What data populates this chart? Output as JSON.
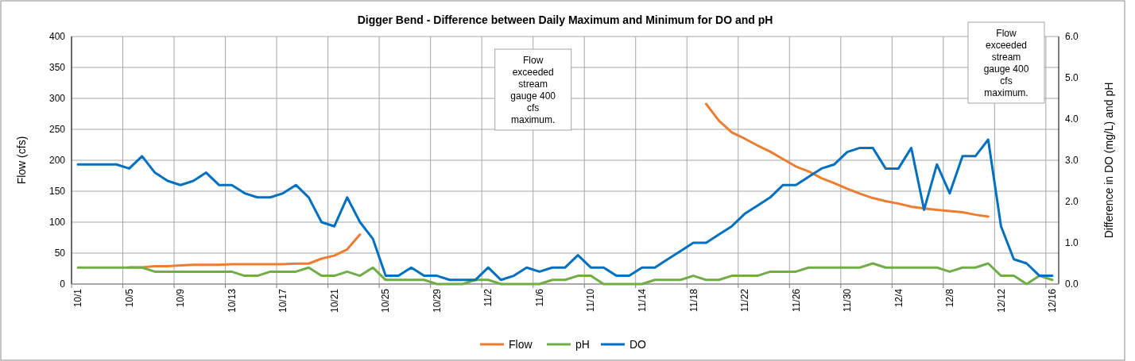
{
  "chart_data": {
    "type": "line",
    "title": "Digger Bend - Difference between Daily Maximum and Minimum for DO and pH",
    "ylabel": "Flow (cfs)",
    "y2label": "Difference in DO (mg/L) and pH",
    "categories": [
      "10/1",
      null,
      null,
      null,
      "10/5",
      null,
      null,
      null,
      "10/9",
      null,
      null,
      null,
      "10/13",
      null,
      null,
      null,
      "10/17",
      null,
      null,
      null,
      "10/21",
      null,
      null,
      null,
      "10/25",
      null,
      null,
      null,
      "10/29",
      null,
      null,
      null,
      "11/2",
      null,
      null,
      null,
      "11/6",
      null,
      null,
      null,
      "11/10",
      null,
      null,
      null,
      "11/14",
      null,
      null,
      null,
      "11/18",
      null,
      null,
      null,
      "11/22",
      null,
      null,
      null,
      "11/26",
      null,
      null,
      null,
      "11/30",
      null,
      null,
      null,
      "12/4",
      null,
      null,
      null,
      "12/8",
      null,
      null,
      null,
      "12/12",
      null,
      null,
      null,
      "12/16"
    ],
    "series": [
      {
        "name": "Flow",
        "color": "#ed7d31",
        "axis": "y",
        "values": [
          null,
          null,
          null,
          null,
          27,
          27,
          29,
          29,
          30,
          31,
          31,
          31,
          32,
          32,
          32,
          32,
          32,
          33,
          33,
          41,
          46,
          56,
          80,
          null,
          null,
          null,
          null,
          null,
          null,
          null,
          null,
          null,
          null,
          null,
          null,
          null,
          null,
          null,
          null,
          null,
          null,
          null,
          null,
          null,
          null,
          null,
          null,
          null,
          null,
          291,
          264,
          245,
          235,
          224,
          214,
          202,
          190,
          182,
          171,
          163,
          154,
          146,
          139,
          134,
          130,
          125,
          122,
          120,
          118,
          116,
          112,
          109,
          null,
          null,
          null,
          null,
          null
        ]
      },
      {
        "name": "pH",
        "color": "#70ad47",
        "axis": "y2",
        "values": [
          0.4,
          0.4,
          0.4,
          0.4,
          0.4,
          0.4,
          0.3,
          0.3,
          0.3,
          0.3,
          0.3,
          0.3,
          0.3,
          0.2,
          0.2,
          0.3,
          0.3,
          0.3,
          0.4,
          0.2,
          0.2,
          0.3,
          0.2,
          0.4,
          0.1,
          0.1,
          0.1,
          0.1,
          0.0,
          0.0,
          0.0,
          0.1,
          0.1,
          0.0,
          0.0,
          0.0,
          0.0,
          0.1,
          0.1,
          0.2,
          0.2,
          0.0,
          0.0,
          0.0,
          0.0,
          0.1,
          0.1,
          0.1,
          0.2,
          0.1,
          0.1,
          0.2,
          0.2,
          0.2,
          0.3,
          0.3,
          0.3,
          0.4,
          0.4,
          0.4,
          0.4,
          0.4,
          0.5,
          0.4,
          0.4,
          0.4,
          0.4,
          0.4,
          0.3,
          0.4,
          0.4,
          0.5,
          0.2,
          0.2,
          0.0,
          0.2,
          0.1
        ]
      },
      {
        "name": "DO",
        "color": "#0070c0",
        "axis": "y2",
        "values": [
          2.9,
          2.9,
          2.9,
          2.9,
          2.8,
          3.1,
          2.7,
          2.5,
          2.4,
          2.5,
          2.7,
          2.4,
          2.4,
          2.2,
          2.1,
          2.1,
          2.2,
          2.4,
          2.1,
          1.5,
          1.4,
          2.1,
          1.5,
          1.1,
          0.2,
          0.2,
          0.4,
          0.2,
          0.2,
          0.1,
          0.1,
          0.1,
          0.4,
          0.1,
          0.2,
          0.4,
          0.3,
          0.4,
          0.4,
          0.7,
          0.4,
          0.4,
          0.2,
          0.2,
          0.4,
          0.4,
          0.6,
          0.8,
          1.0,
          1.0,
          1.2,
          1.4,
          1.7,
          1.9,
          2.1,
          2.4,
          2.4,
          2.6,
          2.8,
          2.9,
          3.2,
          3.3,
          3.3,
          2.8,
          2.8,
          3.3,
          1.8,
          2.9,
          2.2,
          3.1,
          3.1,
          3.5,
          1.4,
          0.6,
          0.5,
          0.2,
          0.2
        ]
      }
    ],
    "ylim": [
      0,
      400
    ],
    "yticks": [
      0,
      50,
      100,
      150,
      200,
      250,
      300,
      350,
      400
    ],
    "y2lim": [
      0,
      6
    ],
    "y2ticks": [
      {
        "value": 0,
        "label": "0.0"
      },
      {
        "value": 1,
        "label": "1.0"
      },
      {
        "value": 2,
        "label": "2.0"
      },
      {
        "value": 3,
        "label": "3.0"
      },
      {
        "value": 4,
        "label": "4.0"
      },
      {
        "value": 5,
        "label": "5.0"
      },
      {
        "value": 6,
        "label": "6.0"
      }
    ],
    "annotations": [
      "Flow exceeded stream gauge 400 cfs maximum.",
      "Flow exceeded stream gauge 400 cfs maximum."
    ],
    "grid": true,
    "legend": "bottom",
    "marker": "none",
    "line_style": "solid"
  }
}
